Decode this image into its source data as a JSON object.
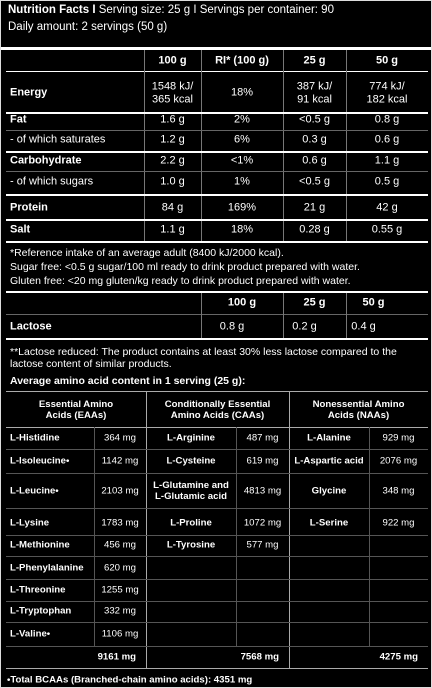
{
  "header": {
    "title": "Nutrition Facts I",
    "serving": "Serving size: 25 g I Servings per container: 90",
    "daily": "Daily amount: 2 servings (50 g)"
  },
  "nutrition": {
    "columns": [
      "100 g",
      "RI* (100 g)",
      "25 g",
      "50 g"
    ],
    "rows": [
      [
        "Energy",
        "1548 kJ/\n365 kcal",
        "18%",
        "387 kJ/\n91 kcal",
        "774 kJ/\n182 kcal"
      ],
      [
        "Fat",
        "1.6 g",
        "2%",
        "<0.5 g",
        "0.8 g"
      ],
      [
        "- of which saturates",
        "1.2 g",
        "6%",
        "0.3 g",
        "0.6 g"
      ],
      [
        "Carbohydrate",
        "2.2 g",
        "<1%",
        "0.6 g",
        "1.1 g"
      ],
      [
        "- of which sugars",
        "1.0 g",
        "1%",
        "<0.5 g",
        "0.5 g"
      ],
      [
        "Protein",
        "84 g",
        "169%",
        "21 g",
        "42 g"
      ],
      [
        "Salt",
        "1.1 g",
        "18%",
        "0.28 g",
        "0.55 g"
      ]
    ]
  },
  "notes": [
    "*Reference intake of an average adult (8400 kJ/2000 kcal).",
    "Sugar free: <0.5 g sugar/100 ml ready to drink product prepared with water.",
    "Gluten free: <20 mg gluten/kg ready to drink product prepared with water."
  ],
  "lactose": {
    "columns": [
      "100 g",
      "25 g",
      "50 g"
    ],
    "rows": [
      [
        "Lactose",
        "0.8 g",
        "0.2 g",
        "0.4 g"
      ]
    ],
    "note": "**Lactose reduced: The product contains at least 30% less lactose compared to the lactose content of similar products."
  },
  "amino": {
    "title": "Average amino acid content in 1 serving (25 g):",
    "columns": [
      "Essential Amino\nAcids (EAAs)",
      "Conditionally Essential\nAmino Acids (CAAs)",
      "Nonessential Amino\nAcids (NAAs)"
    ],
    "rows": [
      [
        [
          "L-Histidine",
          "364 mg"
        ],
        [
          "L-Arginine",
          "487 mg"
        ],
        [
          "L-Alanine",
          "929 mg"
        ]
      ],
      [
        [
          "L-Isoleucine•",
          "1142 mg"
        ],
        [
          "L-Cysteine",
          "619 mg"
        ],
        [
          "L-Aspartic acid",
          "2076 mg"
        ]
      ],
      [
        [
          "L-Leucine•",
          "2103 mg"
        ],
        [
          "L-Glutamine and\nL-Glutamic acid",
          "4813 mg"
        ],
        [
          "Glycine",
          "348 mg"
        ]
      ],
      [
        [
          "L-Lysine",
          "1783 mg"
        ],
        [
          "L-Proline",
          "1072 mg"
        ],
        [
          "L-Serine",
          "922 mg"
        ]
      ],
      [
        [
          "L-Methionine",
          "456 mg"
        ],
        [
          "L-Tyrosine",
          "577 mg"
        ],
        null
      ],
      [
        [
          "L-Phenylalanine",
          "620 mg"
        ],
        null,
        null
      ],
      [
        [
          "L-Threonine",
          "1255 mg"
        ],
        null,
        null
      ],
      [
        [
          "L-Tryptophan",
          "332 mg"
        ],
        null,
        null
      ],
      [
        [
          "L-Valine•",
          "1106 mg"
        ],
        null,
        null
      ]
    ],
    "totals": [
      "9161 mg",
      "7568 mg",
      "4275 mg"
    ]
  },
  "footer": "•Total BCAAs (Branched-chain amino acids): 4351 mg"
}
